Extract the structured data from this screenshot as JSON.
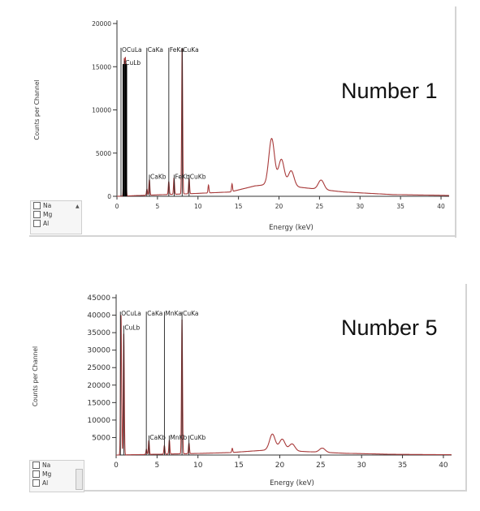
{
  "panels": [
    {
      "label": "Number 1",
      "legend_items": [
        "Na",
        "Mg",
        "Al"
      ],
      "legend_arrow": "▲"
    },
    {
      "label": "Number 5",
      "legend_items": [
        "Na",
        "Mg",
        "Al"
      ]
    }
  ],
  "chart_data": [
    {
      "type": "line",
      "xlabel": "Energy (keV)",
      "ylabel": "Counts per Channel",
      "xlim": [
        0,
        41
      ],
      "ylim": [
        0,
        20000
      ],
      "x_ticks": [
        "0",
        "5",
        "10",
        "15",
        "20",
        "25",
        "30",
        "35",
        "40"
      ],
      "x_tick_values": [
        0,
        5,
        10,
        15,
        20,
        25,
        30,
        35,
        40
      ],
      "y_ticks": [
        "0",
        "5000",
        "10000",
        "15000",
        "20000"
      ],
      "y_tick_values": [
        0,
        5000,
        10000,
        15000,
        20000
      ],
      "grid": false,
      "colors": {
        "spectrum": "#a83a3a",
        "marker": "#222222",
        "fill": "#000000"
      },
      "peaks": [
        {
          "x": 0.9,
          "y": 15300,
          "fill": true
        },
        {
          "x": 1.05,
          "y": 15300,
          "fill": true
        },
        {
          "x": 3.7,
          "y": 700
        },
        {
          "x": 4.0,
          "y": 1800
        },
        {
          "x": 6.4,
          "y": 1500
        },
        {
          "x": 7.05,
          "y": 1900
        },
        {
          "x": 8.05,
          "y": 17000
        },
        {
          "x": 8.9,
          "y": 1800
        },
        {
          "x": 11.3,
          "y": 900
        },
        {
          "x": 14.2,
          "y": 900
        },
        {
          "x": 19.1,
          "y": 5300
        },
        {
          "x": 20.3,
          "y": 3000
        },
        {
          "x": 21.5,
          "y": 1800
        },
        {
          "x": 25.2,
          "y": 1100
        }
      ],
      "baseline": [
        [
          0,
          0
        ],
        [
          9,
          300
        ],
        [
          14,
          500
        ],
        [
          17,
          1200
        ],
        [
          19,
          1400
        ],
        [
          23,
          1000
        ],
        [
          28,
          500
        ],
        [
          34,
          200
        ],
        [
          41,
          100
        ]
      ],
      "markers": [
        {
          "x": 0.5,
          "y": 17200,
          "label": "OCuLa"
        },
        {
          "x": 0.93,
          "y": 15700,
          "label": "CuLb"
        },
        {
          "x": 3.69,
          "y": 17200,
          "label": "CaKa"
        },
        {
          "x": 6.4,
          "y": 17200,
          "label": "FeKa"
        },
        {
          "x": 8.05,
          "y": 17200,
          "label": "CuKa"
        },
        {
          "x": 4.01,
          "y": 2500,
          "label": "CaKb"
        },
        {
          "x": 7.06,
          "y": 2500,
          "label": "FeKb"
        },
        {
          "x": 8.9,
          "y": 2500,
          "label": "CuKb"
        }
      ]
    },
    {
      "type": "line",
      "xlabel": "Energy (keV)",
      "ylabel": "Counts per Channel",
      "xlim": [
        0,
        41
      ],
      "ylim": [
        0,
        45000
      ],
      "x_ticks": [
        "0",
        "5",
        "10",
        "15",
        "20",
        "25",
        "30",
        "35",
        "40"
      ],
      "x_tick_values": [
        0,
        5,
        10,
        15,
        20,
        25,
        30,
        35,
        40
      ],
      "y_ticks": [
        "5000",
        "10000",
        "15000",
        "20000",
        "25000",
        "30000",
        "35000",
        "40000",
        "45000"
      ],
      "y_tick_values": [
        5000,
        10000,
        15000,
        20000,
        25000,
        30000,
        35000,
        40000,
        45000
      ],
      "grid": false,
      "colors": {
        "spectrum": "#a83a3a",
        "marker": "#222222",
        "fill": "#000000"
      },
      "peaks": [
        {
          "x": 0.6,
          "y": 40000
        },
        {
          "x": 0.93,
          "y": 35000
        },
        {
          "x": 3.7,
          "y": 1500
        },
        {
          "x": 4.0,
          "y": 4000
        },
        {
          "x": 5.9,
          "y": 2500
        },
        {
          "x": 6.5,
          "y": 4000
        },
        {
          "x": 8.05,
          "y": 38800
        },
        {
          "x": 8.9,
          "y": 3000
        },
        {
          "x": 14.2,
          "y": 1200
        },
        {
          "x": 19.1,
          "y": 4500
        },
        {
          "x": 20.3,
          "y": 3200
        },
        {
          "x": 21.5,
          "y": 2000
        },
        {
          "x": 25.2,
          "y": 1200
        }
      ],
      "baseline": [
        [
          0,
          0
        ],
        [
          9,
          400
        ],
        [
          14,
          700
        ],
        [
          17,
          1200
        ],
        [
          19,
          1500
        ],
        [
          23,
          1000
        ],
        [
          28,
          500
        ],
        [
          34,
          200
        ],
        [
          41,
          100
        ]
      ],
      "markers": [
        {
          "x": 0.52,
          "y": 41000,
          "label": "OCuLa"
        },
        {
          "x": 0.93,
          "y": 37000,
          "label": "CuLb"
        },
        {
          "x": 3.69,
          "y": 41000,
          "label": "CaKa"
        },
        {
          "x": 5.9,
          "y": 41000,
          "label": "MnKa"
        },
        {
          "x": 8.05,
          "y": 41000,
          "label": "CuKa"
        },
        {
          "x": 4.01,
          "y": 5600,
          "label": "CaKb"
        },
        {
          "x": 6.49,
          "y": 5600,
          "label": "MnKb"
        },
        {
          "x": 8.9,
          "y": 5600,
          "label": "CuKb"
        }
      ]
    }
  ]
}
